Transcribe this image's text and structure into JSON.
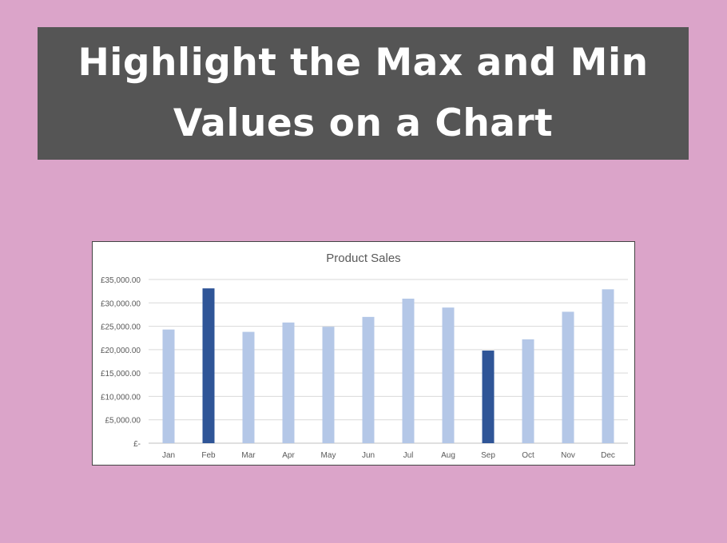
{
  "banner": {
    "line1": "Highlight the Max and Min",
    "line2": "Values on a Chart"
  },
  "colors": {
    "background": "#dba4c9",
    "banner": "#555555",
    "bar_normal": "#b4c7e7",
    "bar_highlight": "#2f5597"
  },
  "chart_data": {
    "type": "bar",
    "title": "Product Sales",
    "xlabel": "",
    "ylabel": "",
    "categories": [
      "Jan",
      "Feb",
      "Mar",
      "Apr",
      "May",
      "Jun",
      "Jul",
      "Aug",
      "Sep",
      "Oct",
      "Nov",
      "Dec"
    ],
    "values": [
      24300,
      33100,
      23800,
      25800,
      24900,
      27000,
      30900,
      29000,
      19800,
      22200,
      28100,
      32900
    ],
    "highlighted": [
      "Feb",
      "Sep"
    ],
    "ylim": [
      0,
      35000
    ],
    "yticks": [
      0,
      5000,
      10000,
      15000,
      20000,
      25000,
      30000,
      35000
    ],
    "ytick_labels": [
      "£-",
      "£5,000.00",
      "£10,000.00",
      "£15,000.00",
      "£20,000.00",
      "£25,000.00",
      "£30,000.00",
      "£35,000.00"
    ],
    "grid": true,
    "legend": "none"
  }
}
